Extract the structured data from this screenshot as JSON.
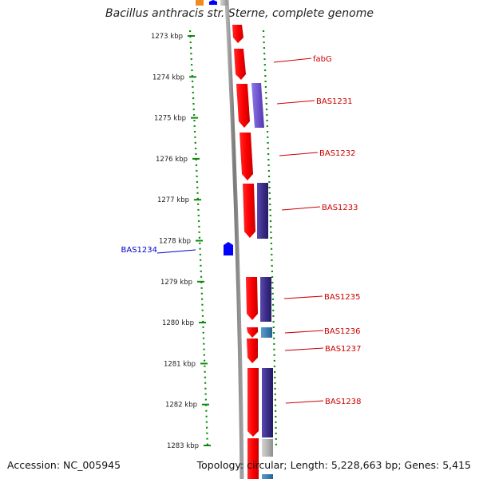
{
  "title": "Bacillus anthracis str. Sterne, complete genome",
  "footer": {
    "accession": "Accession: NC_005945",
    "summary": "Topology: circular; Length: 5,228,663 bp; Genes: 5,415"
  },
  "colors": {
    "forward_cds": "#ff0000",
    "reverse_cds_dark": "#3b2e8a",
    "reverse_cds_light": "#7055d0",
    "small_blue": "#3f7fb5",
    "gray": "#b4b4b4",
    "highlight_gene": "#0000ff",
    "ticks": "#0a8a0a",
    "backbone": "#888888",
    "label_red": "#cc0000",
    "label_blue": "#0000cc"
  },
  "ticks": [
    {
      "label": "1273 kbp"
    },
    {
      "label": "1274 kbp"
    },
    {
      "label": "1275 kbp"
    },
    {
      "label": "1276 kbp"
    },
    {
      "label": "1277 kbp"
    },
    {
      "label": "1278 kbp"
    },
    {
      "label": "1279 kbp"
    },
    {
      "label": "1280 kbp"
    },
    {
      "label": "1281 kbp"
    },
    {
      "label": "1282 kbp"
    },
    {
      "label": "1283 kbp"
    }
  ],
  "gene_labels": [
    {
      "text": "fabG"
    },
    {
      "text": "BAS1231"
    },
    {
      "text": "BAS1232"
    },
    {
      "text": "BAS1233"
    },
    {
      "text": "BAS1234"
    },
    {
      "text": "BAS1235"
    },
    {
      "text": "BAS1236"
    },
    {
      "text": "BAS1237"
    },
    {
      "text": "BAS1238"
    }
  ]
}
